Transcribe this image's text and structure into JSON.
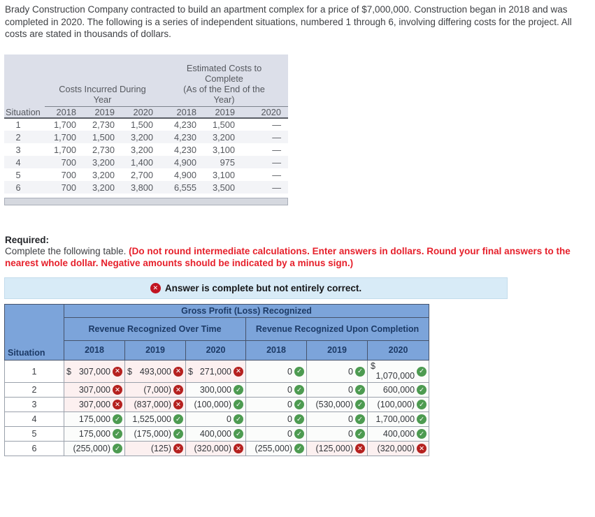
{
  "intro": "Brady Construction Company contracted to build an apartment complex for a price of $7,000,000. Construction began in 2018 and was completed in 2020. The following is a series of independent situations, numbered 1 through 6, involving differing costs for the project. All costs are stated in thousands of dollars.",
  "cost_table": {
    "situation_label": "Situation",
    "incurred_header": "Costs Incurred During\nYear",
    "estimated_header": "Estimated Costs to\nComplete\n(As of the End of the\nYear)",
    "years": [
      "2018",
      "2019",
      "2020",
      "2018",
      "2019",
      "2020"
    ],
    "rows": [
      {
        "situation": "1",
        "values": [
          "1,700",
          "2,730",
          "1,500",
          "4,230",
          "1,500",
          "—"
        ]
      },
      {
        "situation": "2",
        "values": [
          "1,700",
          "1,500",
          "3,200",
          "4,230",
          "3,200",
          "—"
        ]
      },
      {
        "situation": "3",
        "values": [
          "1,700",
          "2,730",
          "3,200",
          "4,230",
          "3,100",
          "—"
        ]
      },
      {
        "situation": "4",
        "values": [
          "700",
          "3,200",
          "1,400",
          "4,900",
          "975",
          "—"
        ]
      },
      {
        "situation": "5",
        "values": [
          "700",
          "3,200",
          "2,700",
          "4,900",
          "3,100",
          "—"
        ]
      },
      {
        "situation": "6",
        "values": [
          "700",
          "3,200",
          "3,800",
          "6,555",
          "3,500",
          "—"
        ]
      }
    ]
  },
  "required": {
    "label": "Required:",
    "text": "Complete the following table. ",
    "warning": "(Do not round intermediate calculations. Enter answers in dollars. Round your final answers to the nearest whole dollar. Negative amounts should be indicated by a minus sign.)"
  },
  "banner": {
    "icon": "x-circle",
    "text": "Answer is complete but not entirely correct."
  },
  "answer_table": {
    "title": "Gross Profit (Loss) Recognized",
    "group_over_time": "Revenue Recognized Over Time",
    "group_completion": "Revenue Recognized Upon Completion",
    "situation_label": "Situation",
    "years": [
      "2018",
      "2019",
      "2020",
      "2018",
      "2019",
      "2020"
    ],
    "rows": [
      {
        "situation": "1",
        "cells": [
          {
            "prefix": "$",
            "value": "307,000",
            "status": "incorrect"
          },
          {
            "prefix": "$",
            "value": "493,000",
            "status": "incorrect"
          },
          {
            "prefix": "$",
            "value": "271,000",
            "status": "incorrect"
          },
          {
            "value": "0",
            "status": "correct"
          },
          {
            "value": "0",
            "status": "correct"
          },
          {
            "prefix": "$",
            "value": "1,070,000",
            "status": "correct",
            "prefix_block": true
          }
        ]
      },
      {
        "situation": "2",
        "cells": [
          {
            "value": "307,000",
            "status": "incorrect"
          },
          {
            "value": "(7,000)",
            "status": "incorrect"
          },
          {
            "value": "300,000",
            "status": "correct"
          },
          {
            "value": "0",
            "status": "correct"
          },
          {
            "value": "0",
            "status": "correct"
          },
          {
            "value": "600,000",
            "status": "correct"
          }
        ]
      },
      {
        "situation": "3",
        "cells": [
          {
            "value": "307,000",
            "status": "incorrect"
          },
          {
            "value": "(837,000)",
            "status": "incorrect"
          },
          {
            "value": "(100,000)",
            "status": "correct"
          },
          {
            "value": "0",
            "status": "correct"
          },
          {
            "value": "(530,000)",
            "status": "correct"
          },
          {
            "value": "(100,000)",
            "status": "correct"
          }
        ]
      },
      {
        "situation": "4",
        "cells": [
          {
            "value": "175,000",
            "status": "correct"
          },
          {
            "value": "1,525,000",
            "status": "correct"
          },
          {
            "value": "0",
            "status": "correct"
          },
          {
            "value": "0",
            "status": "correct"
          },
          {
            "value": "0",
            "status": "correct"
          },
          {
            "value": "1,700,000",
            "status": "correct"
          }
        ]
      },
      {
        "situation": "5",
        "cells": [
          {
            "value": "175,000",
            "status": "correct"
          },
          {
            "value": "(175,000)",
            "status": "correct"
          },
          {
            "value": "400,000",
            "status": "correct"
          },
          {
            "value": "0",
            "status": "correct"
          },
          {
            "value": "0",
            "status": "correct"
          },
          {
            "value": "400,000",
            "status": "correct"
          }
        ]
      },
      {
        "situation": "6",
        "cells": [
          {
            "value": "(255,000)",
            "status": "correct"
          },
          {
            "value": "(125)",
            "status": "incorrect"
          },
          {
            "value": "(320,000)",
            "status": "incorrect"
          },
          {
            "value": "(255,000)",
            "status": "correct"
          },
          {
            "value": "(125,000)",
            "status": "incorrect"
          },
          {
            "value": "(320,000)",
            "status": "incorrect"
          }
        ]
      }
    ]
  },
  "colors": {
    "header_blue": "#7ca4da",
    "header_text": "#1c3a66",
    "correct_green": "#4d9b51",
    "incorrect_red": "#b5211f",
    "banner_icon_red": "#c11421",
    "incorrect_cell_bg": "#fcf0f0",
    "correct_cell_bg": "#fbfcfb",
    "banner_bg": "#d8ebf7",
    "warning_red": "#e6202b",
    "cost_header_bg": "#dcdfe9"
  }
}
